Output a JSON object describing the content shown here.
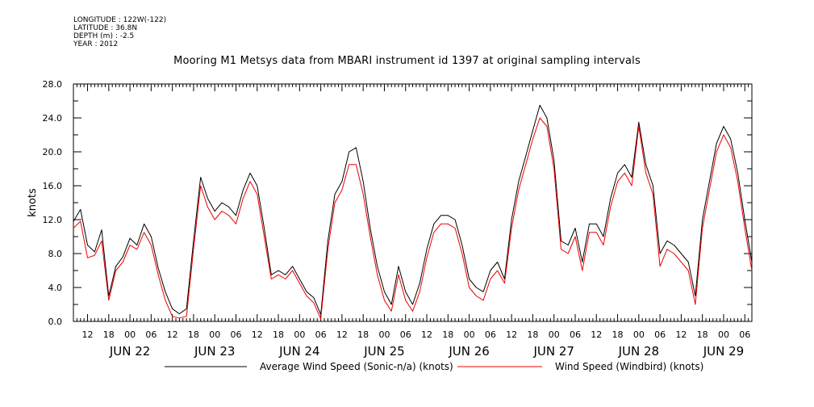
{
  "header": {
    "longitude": "LONGITUDE : 122W(-122)",
    "latitude": "LATITUDE : 36.8N",
    "depth": "DEPTH (m) : -2.5",
    "year": "YEAR : 2012"
  },
  "chart_data": {
    "type": "line",
    "title": "Mooring M1 Metsys data from MBARI instrument id 1397 at original sampling intervals",
    "ylabel": "knots",
    "xlabel": "",
    "ylim": [
      0,
      28
    ],
    "y_ticks": [
      "0.0",
      "4.0",
      "8.0",
      "12.0",
      "16.0",
      "20.0",
      "24.0",
      "28.0"
    ],
    "x_range_hours": [
      "2012-06-21T08:00",
      "2012-06-29T08:00"
    ],
    "x_tick_labels": [
      "12",
      "18",
      "00",
      "06",
      "12",
      "18",
      "00",
      "06",
      "12",
      "18",
      "00",
      "06",
      "12",
      "18",
      "00",
      "06",
      "12",
      "18",
      "00",
      "06",
      "12",
      "18",
      "00",
      "06",
      "12",
      "18",
      "00",
      "06",
      "12",
      "18",
      "00",
      "06"
    ],
    "day_labels": [
      "JUN 22",
      "JUN 23",
      "JUN 24",
      "JUN 25",
      "JUN 26",
      "JUN 27",
      "JUN 28",
      "JUN 29"
    ],
    "series": [
      {
        "name": "Average Wind Speed (Sonic-n/a) (knots)",
        "color": "#000000",
        "x": [
          "2012-06-21T08:00",
          "2012-06-21T10:00",
          "2012-06-21T12:00",
          "2012-06-21T14:00",
          "2012-06-21T16:00",
          "2012-06-21T18:00",
          "2012-06-21T20:00",
          "2012-06-21T22:00",
          "2012-06-22T00:00",
          "2012-06-22T02:00",
          "2012-06-22T04:00",
          "2012-06-22T06:00",
          "2012-06-22T08:00",
          "2012-06-22T10:00",
          "2012-06-22T12:00",
          "2012-06-22T14:00",
          "2012-06-22T16:00",
          "2012-06-22T18:00",
          "2012-06-22T20:00",
          "2012-06-22T22:00",
          "2012-06-23T00:00",
          "2012-06-23T02:00",
          "2012-06-23T04:00",
          "2012-06-23T06:00",
          "2012-06-23T08:00",
          "2012-06-23T10:00",
          "2012-06-23T12:00",
          "2012-06-23T14:00",
          "2012-06-23T16:00",
          "2012-06-23T18:00",
          "2012-06-23T20:00",
          "2012-06-23T22:00",
          "2012-06-24T00:00",
          "2012-06-24T02:00",
          "2012-06-24T04:00",
          "2012-06-24T06:00",
          "2012-06-24T08:00",
          "2012-06-24T10:00",
          "2012-06-24T12:00",
          "2012-06-24T14:00",
          "2012-06-24T16:00",
          "2012-06-24T18:00",
          "2012-06-24T20:00",
          "2012-06-24T22:00",
          "2012-06-25T00:00",
          "2012-06-25T02:00",
          "2012-06-25T04:00",
          "2012-06-25T06:00",
          "2012-06-25T08:00",
          "2012-06-25T10:00",
          "2012-06-25T12:00",
          "2012-06-25T14:00",
          "2012-06-25T16:00",
          "2012-06-25T18:00",
          "2012-06-25T20:00",
          "2012-06-25T22:00",
          "2012-06-26T00:00",
          "2012-06-26T02:00",
          "2012-06-26T04:00",
          "2012-06-26T06:00",
          "2012-06-26T08:00",
          "2012-06-26T10:00",
          "2012-06-26T12:00",
          "2012-06-26T14:00",
          "2012-06-26T16:00",
          "2012-06-26T18:00",
          "2012-06-26T20:00",
          "2012-06-26T22:00",
          "2012-06-27T00:00",
          "2012-06-27T02:00",
          "2012-06-27T04:00",
          "2012-06-27T06:00",
          "2012-06-27T08:00",
          "2012-06-27T10:00",
          "2012-06-27T12:00",
          "2012-06-27T14:00",
          "2012-06-27T16:00",
          "2012-06-27T18:00",
          "2012-06-27T20:00",
          "2012-06-27T22:00",
          "2012-06-28T00:00",
          "2012-06-28T02:00",
          "2012-06-28T04:00",
          "2012-06-28T06:00",
          "2012-06-28T08:00",
          "2012-06-28T10:00",
          "2012-06-28T12:00",
          "2012-06-28T14:00",
          "2012-06-28T16:00",
          "2012-06-28T18:00",
          "2012-06-28T20:00",
          "2012-06-28T22:00",
          "2012-06-29T00:00",
          "2012-06-29T02:00",
          "2012-06-29T04:00",
          "2012-06-29T06:00",
          "2012-06-29T08:00"
        ],
        "values": [
          11.8,
          13.2,
          9.0,
          8.2,
          10.8,
          3.0,
          6.5,
          7.6,
          9.8,
          9.0,
          11.5,
          10.0,
          6.3,
          3.5,
          1.5,
          0.9,
          1.5,
          9.5,
          17.0,
          14.5,
          13.0,
          14.0,
          13.5,
          12.5,
          15.5,
          17.5,
          16.0,
          11.0,
          5.5,
          6.0,
          5.5,
          6.5,
          5.0,
          3.5,
          2.8,
          0.8,
          9.5,
          15.0,
          16.5,
          20.0,
          20.5,
          16.5,
          11.0,
          6.5,
          3.5,
          2.0,
          6.5,
          3.5,
          2.0,
          4.5,
          8.5,
          11.5,
          12.5,
          12.5,
          12.0,
          9.0,
          5.0,
          4.0,
          3.5,
          6.0,
          7.0,
          5.0,
          12.0,
          16.5,
          19.5,
          22.5,
          25.5,
          24.0,
          19.0,
          9.5,
          9.0,
          11.0,
          7.0,
          11.5,
          11.5,
          10.0,
          14.5,
          17.5,
          18.5,
          17.0,
          23.5,
          18.5,
          16.0,
          8.0,
          9.5,
          9.0,
          8.0,
          7.0,
          3.0,
          12.0,
          16.5,
          21.0,
          23.0,
          21.5,
          17.5,
          12.0,
          7.0
        ]
      },
      {
        "name": "Wind Speed (Windbird) (knots)",
        "color": "#ee0000",
        "x": [
          "2012-06-21T08:00",
          "2012-06-21T10:00",
          "2012-06-21T12:00",
          "2012-06-21T14:00",
          "2012-06-21T16:00",
          "2012-06-21T18:00",
          "2012-06-21T20:00",
          "2012-06-21T22:00",
          "2012-06-22T00:00",
          "2012-06-22T02:00",
          "2012-06-22T04:00",
          "2012-06-22T06:00",
          "2012-06-22T08:00",
          "2012-06-22T10:00",
          "2012-06-22T12:00",
          "2012-06-22T14:00",
          "2012-06-22T16:00",
          "2012-06-22T18:00",
          "2012-06-22T20:00",
          "2012-06-22T22:00",
          "2012-06-23T00:00",
          "2012-06-23T02:00",
          "2012-06-23T04:00",
          "2012-06-23T06:00",
          "2012-06-23T08:00",
          "2012-06-23T10:00",
          "2012-06-23T12:00",
          "2012-06-23T14:00",
          "2012-06-23T16:00",
          "2012-06-23T18:00",
          "2012-06-23T20:00",
          "2012-06-23T22:00",
          "2012-06-24T00:00",
          "2012-06-24T02:00",
          "2012-06-24T04:00",
          "2012-06-24T06:00",
          "2012-06-24T08:00",
          "2012-06-24T10:00",
          "2012-06-24T12:00",
          "2012-06-24T14:00",
          "2012-06-24T16:00",
          "2012-06-24T18:00",
          "2012-06-24T20:00",
          "2012-06-24T22:00",
          "2012-06-25T00:00",
          "2012-06-25T02:00",
          "2012-06-25T04:00",
          "2012-06-25T06:00",
          "2012-06-25T08:00",
          "2012-06-25T10:00",
          "2012-06-25T12:00",
          "2012-06-25T14:00",
          "2012-06-25T16:00",
          "2012-06-25T18:00",
          "2012-06-25T20:00",
          "2012-06-25T22:00",
          "2012-06-26T00:00",
          "2012-06-26T02:00",
          "2012-06-26T04:00",
          "2012-06-26T06:00",
          "2012-06-26T08:00",
          "2012-06-26T10:00",
          "2012-06-26T12:00",
          "2012-06-26T14:00",
          "2012-06-26T16:00",
          "2012-06-26T18:00",
          "2012-06-26T20:00",
          "2012-06-26T22:00",
          "2012-06-27T00:00",
          "2012-06-27T02:00",
          "2012-06-27T04:00",
          "2012-06-27T06:00",
          "2012-06-27T08:00",
          "2012-06-27T10:00",
          "2012-06-27T12:00",
          "2012-06-27T14:00",
          "2012-06-27T16:00",
          "2012-06-27T18:00",
          "2012-06-27T20:00",
          "2012-06-27T22:00",
          "2012-06-28T00:00",
          "2012-06-28T02:00",
          "2012-06-28T04:00",
          "2012-06-28T06:00",
          "2012-06-28T08:00",
          "2012-06-28T10:00",
          "2012-06-28T12:00",
          "2012-06-28T14:00",
          "2012-06-28T16:00",
          "2012-06-28T18:00",
          "2012-06-28T20:00",
          "2012-06-28T22:00",
          "2012-06-29T00:00",
          "2012-06-29T02:00",
          "2012-06-29T04:00",
          "2012-06-29T06:00",
          "2012-06-29T08:00"
        ],
        "values": [
          11.0,
          11.8,
          7.5,
          7.8,
          9.5,
          2.5,
          6.0,
          7.0,
          9.0,
          8.5,
          10.5,
          9.0,
          5.5,
          2.5,
          0.6,
          0.4,
          0.6,
          8.5,
          16.0,
          13.5,
          12.0,
          13.0,
          12.5,
          11.5,
          14.5,
          16.5,
          15.0,
          10.0,
          5.0,
          5.5,
          5.0,
          6.0,
          4.5,
          3.0,
          2.2,
          0.3,
          8.5,
          14.0,
          15.5,
          18.5,
          18.5,
          15.0,
          10.0,
          5.5,
          2.5,
          1.2,
          5.5,
          2.5,
          1.2,
          3.5,
          7.5,
          10.5,
          11.5,
          11.5,
          11.0,
          8.0,
          4.0,
          3.0,
          2.5,
          5.0,
          6.0,
          4.5,
          11.0,
          15.5,
          18.5,
          21.5,
          24.0,
          23.0,
          18.0,
          8.5,
          8.0,
          10.0,
          6.0,
          10.5,
          10.5,
          9.0,
          13.5,
          16.5,
          17.5,
          16.0,
          23.0,
          17.5,
          15.0,
          6.5,
          8.5,
          8.0,
          7.0,
          6.0,
          2.0,
          11.0,
          15.5,
          20.0,
          22.0,
          20.5,
          16.5,
          11.0,
          6.0
        ]
      }
    ],
    "legend_placement": "bottom"
  }
}
